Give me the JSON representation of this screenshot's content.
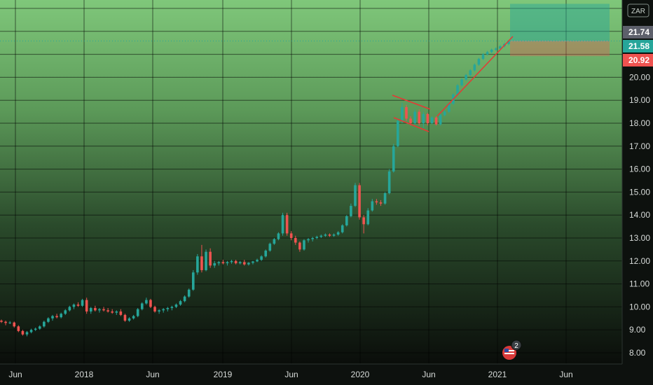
{
  "chart_data": {
    "type": "candlestick",
    "y_axis": {
      "ticks": [
        "8.00",
        "9.00",
        "10.00",
        "11.00",
        "12.00",
        "13.00",
        "14.00",
        "15.00",
        "16.00",
        "17.00",
        "18.00",
        "19.00",
        "20.00"
      ],
      "range": [
        7.6,
        23.2
      ]
    },
    "x_axis": {
      "labels": [
        "Jun",
        "2018",
        "Jun",
        "2019",
        "Jun",
        "2020",
        "Jun",
        "2021",
        "Jun"
      ]
    },
    "price_tags": [
      {
        "value": "21.74",
        "color": "#5d606b"
      },
      {
        "value": "21.58",
        "color": "#26a69a"
      },
      {
        "value": "20.92",
        "color": "#ef5350"
      }
    ],
    "current_price": 21.58,
    "series": {
      "up_color": "#26a69a",
      "down_color": "#ef5350",
      "candles": [
        [
          9.4,
          9.45,
          9.3,
          9.35
        ],
        [
          9.35,
          9.4,
          9.2,
          9.3
        ],
        [
          9.3,
          9.38,
          9.25,
          9.32
        ],
        [
          9.32,
          9.36,
          9.1,
          9.15
        ],
        [
          9.15,
          9.2,
          8.9,
          8.95
        ],
        [
          8.95,
          9.0,
          8.75,
          8.8
        ],
        [
          8.8,
          8.95,
          8.72,
          8.9
        ],
        [
          8.9,
          9.05,
          8.85,
          9.0
        ],
        [
          9.0,
          9.1,
          8.95,
          9.05
        ],
        [
          9.05,
          9.2,
          9.0,
          9.15
        ],
        [
          9.15,
          9.4,
          9.1,
          9.35
        ],
        [
          9.35,
          9.55,
          9.3,
          9.5
        ],
        [
          9.5,
          9.65,
          9.4,
          9.6
        ],
        [
          9.6,
          9.7,
          9.5,
          9.55
        ],
        [
          9.55,
          9.75,
          9.5,
          9.7
        ],
        [
          9.7,
          9.9,
          9.65,
          9.85
        ],
        [
          9.85,
          10.05,
          9.8,
          10.0
        ],
        [
          10.0,
          10.15,
          9.9,
          10.1
        ],
        [
          10.1,
          10.2,
          10.0,
          10.05
        ],
        [
          10.05,
          10.35,
          10.0,
          10.3
        ],
        [
          10.3,
          10.4,
          9.7,
          9.8
        ],
        [
          9.8,
          10.0,
          9.7,
          9.95
        ],
        [
          9.95,
          10.05,
          9.8,
          9.85
        ],
        [
          9.85,
          9.95,
          9.75,
          9.9
        ],
        [
          9.9,
          10.0,
          9.8,
          9.85
        ],
        [
          9.85,
          9.95,
          9.75,
          9.8
        ],
        [
          9.8,
          9.9,
          9.7,
          9.75
        ],
        [
          9.75,
          9.85,
          9.65,
          9.8
        ],
        [
          9.8,
          9.9,
          9.6,
          9.65
        ],
        [
          9.65,
          9.7,
          9.35,
          9.4
        ],
        [
          9.4,
          9.55,
          9.35,
          9.5
        ],
        [
          9.5,
          9.65,
          9.45,
          9.6
        ],
        [
          9.6,
          9.95,
          9.55,
          9.9
        ],
        [
          9.9,
          10.2,
          9.85,
          10.15
        ],
        [
          10.15,
          10.4,
          10.1,
          10.3
        ],
        [
          10.3,
          10.35,
          9.95,
          10.0
        ],
        [
          10.0,
          10.05,
          9.75,
          9.8
        ],
        [
          9.8,
          9.9,
          9.7,
          9.85
        ],
        [
          9.85,
          9.95,
          9.75,
          9.9
        ],
        [
          9.9,
          10.0,
          9.8,
          9.95
        ],
        [
          9.95,
          10.05,
          9.85,
          10.0
        ],
        [
          10.0,
          10.15,
          9.95,
          10.1
        ],
        [
          10.1,
          10.3,
          10.05,
          10.25
        ],
        [
          10.25,
          10.5,
          10.2,
          10.45
        ],
        [
          10.45,
          10.8,
          10.4,
          10.75
        ],
        [
          10.75,
          11.6,
          10.7,
          11.5
        ],
        [
          11.5,
          12.3,
          11.4,
          12.2
        ],
        [
          12.2,
          12.7,
          11.5,
          11.6
        ],
        [
          11.6,
          12.5,
          11.55,
          12.4
        ],
        [
          12.4,
          12.55,
          11.7,
          11.8
        ],
        [
          11.8,
          12.0,
          11.7,
          11.9
        ],
        [
          11.9,
          12.0,
          11.8,
          11.95
        ],
        [
          11.95,
          12.05,
          11.85,
          11.9
        ],
        [
          11.9,
          12.0,
          11.8,
          11.95
        ],
        [
          11.95,
          12.05,
          11.88,
          12.0
        ],
        [
          12.0,
          12.05,
          11.85,
          11.9
        ],
        [
          11.9,
          12.0,
          11.85,
          11.95
        ],
        [
          11.95,
          12.05,
          11.8,
          11.85
        ],
        [
          11.85,
          11.95,
          11.8,
          11.92
        ],
        [
          11.92,
          12.0,
          11.85,
          11.98
        ],
        [
          11.98,
          12.1,
          11.95,
          12.05
        ],
        [
          12.05,
          12.25,
          12.0,
          12.2
        ],
        [
          12.2,
          12.5,
          12.15,
          12.45
        ],
        [
          12.45,
          12.8,
          12.4,
          12.75
        ],
        [
          12.75,
          13.0,
          12.7,
          12.95
        ],
        [
          12.95,
          13.25,
          12.9,
          13.2
        ],
        [
          13.2,
          14.1,
          13.1,
          14.0
        ],
        [
          14.0,
          14.1,
          13.1,
          13.2
        ],
        [
          13.2,
          13.3,
          12.9,
          13.0
        ],
        [
          13.0,
          13.1,
          12.7,
          12.8
        ],
        [
          12.8,
          12.85,
          12.4,
          12.5
        ],
        [
          12.5,
          12.95,
          12.45,
          12.9
        ],
        [
          12.9,
          13.0,
          12.8,
          12.95
        ],
        [
          12.95,
          13.05,
          12.85,
          13.0
        ],
        [
          13.0,
          13.1,
          12.95,
          13.05
        ],
        [
          13.05,
          13.15,
          13.0,
          13.1
        ],
        [
          13.1,
          13.2,
          13.05,
          13.15
        ],
        [
          13.15,
          13.2,
          13.05,
          13.1
        ],
        [
          13.1,
          13.2,
          13.05,
          13.15
        ],
        [
          13.15,
          13.3,
          13.1,
          13.25
        ],
        [
          13.25,
          13.6,
          13.2,
          13.55
        ],
        [
          13.55,
          14.0,
          13.5,
          13.95
        ],
        [
          13.95,
          14.5,
          13.9,
          14.4
        ],
        [
          14.4,
          15.4,
          14.35,
          15.3
        ],
        [
          15.3,
          15.4,
          13.8,
          13.9
        ],
        [
          13.9,
          14.0,
          13.2,
          13.6
        ],
        [
          13.6,
          14.3,
          13.55,
          14.2
        ],
        [
          14.2,
          14.7,
          14.15,
          14.6
        ],
        [
          14.6,
          14.7,
          14.45,
          14.55
        ],
        [
          14.55,
          14.65,
          14.4,
          14.5
        ],
        [
          14.5,
          15.0,
          14.45,
          14.95
        ],
        [
          14.95,
          16.0,
          14.9,
          15.9
        ],
        [
          15.9,
          17.1,
          15.85,
          17.0
        ],
        [
          17.0,
          18.2,
          16.95,
          18.1
        ],
        [
          18.1,
          18.9,
          18.0,
          18.7
        ],
        [
          18.7,
          18.8,
          18.1,
          18.2
        ],
        [
          18.2,
          18.3,
          17.9,
          18.0
        ],
        [
          18.0,
          18.6,
          17.95,
          18.5
        ],
        [
          18.5,
          18.6,
          17.9,
          18.0
        ],
        [
          18.0,
          18.5,
          17.8,
          18.4
        ],
        [
          18.4,
          18.45,
          17.9,
          18.0
        ],
        [
          18.0,
          18.3,
          17.95,
          18.25
        ],
        [
          18.25,
          18.3,
          17.9,
          17.95
        ],
        [
          17.95,
          18.4,
          17.9,
          18.35
        ],
        [
          18.35,
          18.55,
          18.3,
          18.5
        ],
        [
          18.5,
          18.9,
          18.45,
          18.85
        ],
        [
          18.85,
          19.3,
          18.8,
          19.25
        ],
        [
          19.25,
          19.7,
          19.2,
          19.65
        ],
        [
          19.65,
          19.95,
          19.6,
          19.9
        ],
        [
          19.9,
          20.15,
          19.85,
          20.1
        ],
        [
          20.1,
          20.35,
          20.05,
          20.3
        ],
        [
          20.3,
          20.6,
          20.25,
          20.55
        ],
        [
          20.55,
          20.85,
          20.5,
          20.8
        ],
        [
          20.8,
          21.05,
          20.75,
          21.0
        ],
        [
          21.0,
          21.15,
          20.95,
          21.1
        ],
        [
          21.1,
          21.25,
          21.05,
          21.2
        ],
        [
          21.2,
          21.3,
          21.15,
          21.25
        ],
        [
          21.25,
          21.4,
          21.2,
          21.35
        ],
        [
          21.35,
          21.5,
          21.3,
          21.45
        ],
        [
          21.45,
          21.62,
          21.4,
          21.58
        ]
      ]
    },
    "drawings": {
      "flag_upper": [
        [
          560,
          136
        ],
        [
          614,
          156
        ]
      ],
      "flag_lower": [
        [
          562,
          168
        ],
        [
          612,
          188
        ]
      ],
      "trend_line": [
        [
          624,
          166
        ],
        [
          732,
          52
        ]
      ],
      "position": {
        "entry": 21.58,
        "target": 23.2,
        "stop": 20.92
      }
    }
  },
  "ui": {
    "zoom_label": "ZAR",
    "event_badge_count": "2",
    "flag_icon": "us-flag-icon"
  }
}
